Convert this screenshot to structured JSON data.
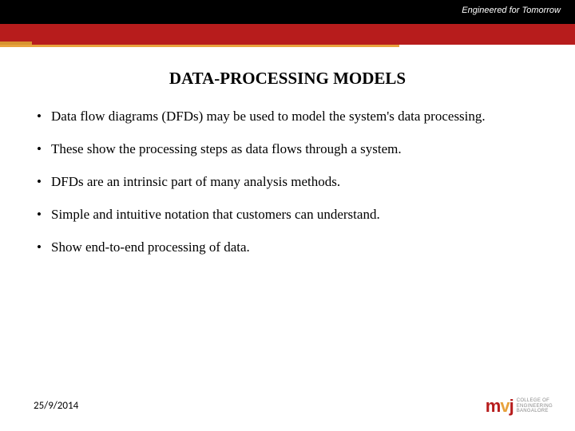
{
  "header": {
    "tagline": "Engineered for Tomorrow",
    "top_bg": "#000000",
    "bar_bg": "#b71c1c",
    "accent_bg": "#e8a33d"
  },
  "title": "DATA-PROCESSING MODELS",
  "bullets": [
    "Data flow diagrams (DFDs) may be used to model the system's data processing.",
    "These show the processing steps as data flows through a system.",
    "DFDs are an intrinsic part of many analysis methods.",
    "Simple and intuitive notation that customers can understand.",
    "Show end-to-end processing of data."
  ],
  "footer": {
    "date": "25/9/2014"
  },
  "logo": {
    "mark_m": "m",
    "mark_v": "v",
    "mark_j": "j",
    "line1": "COLLEGE OF",
    "line2": "ENGINEERING",
    "line3": "BANGALORE"
  }
}
